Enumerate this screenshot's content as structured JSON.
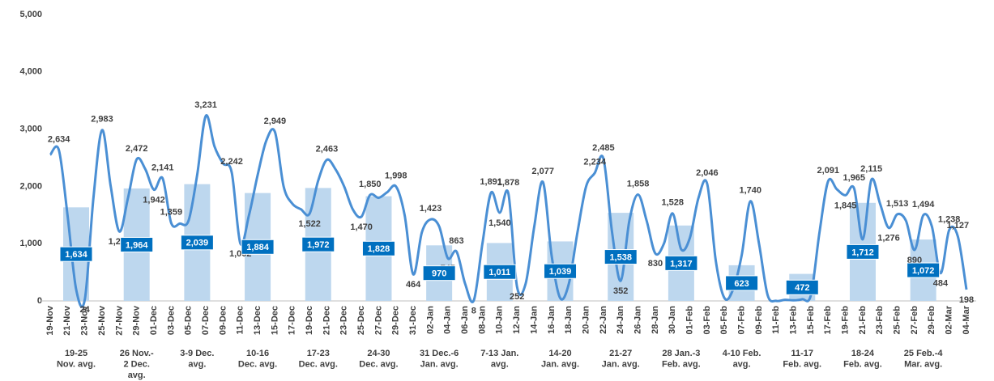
{
  "chart_data": {
    "type": "combo",
    "categories": [
      "19-Nov",
      null,
      "21-Nov",
      null,
      "23-Nov",
      null,
      "25-Nov",
      null,
      "27-Nov",
      null,
      "29-Nov",
      null,
      "01-Dec",
      null,
      "03-Dec",
      null,
      "05-Dec",
      null,
      "07-Dec",
      null,
      "09-Dec",
      null,
      "11-Dec",
      null,
      "13-Dec",
      null,
      "15-Dec",
      null,
      "17-Dec",
      null,
      "19-Dec",
      null,
      "21-Dec",
      null,
      "23-Dec",
      null,
      "25-Dec",
      null,
      "27-Dec",
      null,
      "29-Dec",
      null,
      "31-Dec",
      null,
      "02-Jan",
      null,
      "04-Jan",
      null,
      "06-Jan",
      null,
      "08-Jan",
      null,
      "10-Jan",
      null,
      "12-Jan",
      null,
      "14-Jan",
      null,
      "16-Jan",
      null,
      "18-Jan",
      null,
      "20-Jan",
      null,
      "22-Jan",
      null,
      "24-Jan",
      null,
      "26-Jan",
      null,
      "28-Jan",
      null,
      "30-Jan",
      null,
      "01-Feb",
      null,
      "03-Feb",
      null,
      "05-Feb",
      null,
      "07-Feb",
      null,
      "09-Feb",
      null,
      "11-Feb",
      null,
      "13-Feb",
      null,
      "15-Feb",
      null,
      "17-Feb",
      null,
      "19-Feb",
      null,
      "21-Feb",
      null,
      "23-Feb",
      null,
      "25-Feb",
      null,
      "27-Feb",
      null,
      "29-Feb",
      null,
      "02-Mar",
      null,
      "04-Mar"
    ],
    "values": [
      2550,
      2634,
      1500,
      200,
      24,
      1800,
      2983,
      2000,
      1212,
      1800,
      2472,
      2300,
      1942,
      2141,
      1359,
      1350,
      1400,
      2200,
      3231,
      2700,
      2400,
      2242,
      1002,
      1500,
      2200,
      2800,
      2949,
      2000,
      1700,
      1600,
      1522,
      2100,
      2463,
      2300,
      2000,
      1600,
      1470,
      1850,
      1800,
      1900,
      1998,
      1500,
      464,
      1200,
      1423,
      1300,
      745,
      863,
      300,
      8,
      1000,
      1891,
      1540,
      1878,
      252,
      300,
      1300,
      2077,
      800,
      50,
      300,
      1200,
      2000,
      2234,
      2485,
      1200,
      352,
      1400,
      1858,
      1400,
      830,
      1000,
      1528,
      900,
      1100,
      1800,
      2046,
      700,
      50,
      200,
      800,
      1740,
      1000,
      100,
      0,
      20,
      10,
      30,
      100,
      1200,
      2091,
      1950,
      1845,
      1965,
      1075,
      2115,
      1700,
      1276,
      1513,
      1400,
      890,
      1494,
      1300,
      484,
      1238,
      1127,
      198
    ],
    "value_labels": [
      null,
      "2,634",
      null,
      null,
      "24",
      null,
      "2,983",
      null,
      "1,212",
      null,
      "2,472",
      null,
      "1,942",
      "2,141",
      "1,359",
      null,
      null,
      null,
      "3,231",
      null,
      null,
      "2,242",
      "1,002",
      null,
      null,
      null,
      "2,949",
      null,
      null,
      null,
      "1,522",
      null,
      "2,463",
      null,
      null,
      null,
      "1,470",
      "1,850",
      null,
      null,
      "1,998",
      null,
      "464",
      null,
      "1,423",
      null,
      "745",
      "863",
      null,
      "8",
      null,
      "1,891",
      "1,540",
      "1,878",
      "252",
      null,
      null,
      "2,077",
      null,
      null,
      null,
      null,
      null,
      "2,234",
      "2,485",
      null,
      "352",
      null,
      "1,858",
      null,
      "830",
      null,
      "1,528",
      null,
      null,
      null,
      "2,046",
      null,
      null,
      null,
      null,
      "1,740",
      null,
      null,
      null,
      null,
      null,
      null,
      null,
      null,
      "2,091",
      null,
      "1,845",
      "1,965",
      "1,075",
      "2,115",
      null,
      "1,276",
      "1,513",
      null,
      "890",
      "1,494",
      null,
      "484",
      "1,238",
      "1,127",
      "198"
    ],
    "color": "#4a8fd4",
    "weeks": {
      "categories": [
        [
          "19-25",
          "Nov. avg."
        ],
        [
          "26 Nov.-",
          "2 Dec.",
          "avg."
        ],
        [
          "3-9 Dec.",
          "avg."
        ],
        [
          "10-16",
          "Dec. avg."
        ],
        [
          "17-23",
          "Dec. avg."
        ],
        [
          "24-30",
          "Dec. avg."
        ],
        [
          "31 Dec.-6",
          "Jan. avg."
        ],
        [
          "7-13 Jan.",
          "avg."
        ],
        [
          "14-20",
          "Jan. avg."
        ],
        [
          "21-27",
          "Jan. avg."
        ],
        [
          "28 Jan.-3",
          "Feb. avg."
        ],
        [
          "4-10 Feb.",
          "avg."
        ],
        [
          "11-17",
          "Feb. avg."
        ],
        [
          "18-24",
          "Feb. avg."
        ],
        [
          "25 Feb.-4",
          "Mar. avg."
        ]
      ],
      "values": [
        1634,
        1964,
        2039,
        1884,
        1972,
        1828,
        970,
        1011,
        1039,
        1538,
        1317,
        623,
        472,
        1712,
        1072
      ],
      "value_labels": [
        "1,634",
        "1,964",
        "2,039",
        "1,884",
        "1,972",
        "1,828",
        "970",
        "1,011",
        "1,039",
        "1,538",
        "1,317",
        "623",
        "472",
        "1,712",
        "1,072"
      ],
      "color": "#bdd7ee",
      "label_color": "#0070c0"
    },
    "ylim": [
      0,
      5000
    ],
    "yticks": [
      0,
      {
        "value": 1000,
        "label": "1,000"
      },
      {
        "value": 2000,
        "label": "2,000"
      },
      {
        "value": 3000,
        "label": "3,000"
      },
      {
        "value": 4000,
        "label": "4,000"
      },
      {
        "value": 5000,
        "label": "5,000"
      }
    ],
    "grid": false
  }
}
